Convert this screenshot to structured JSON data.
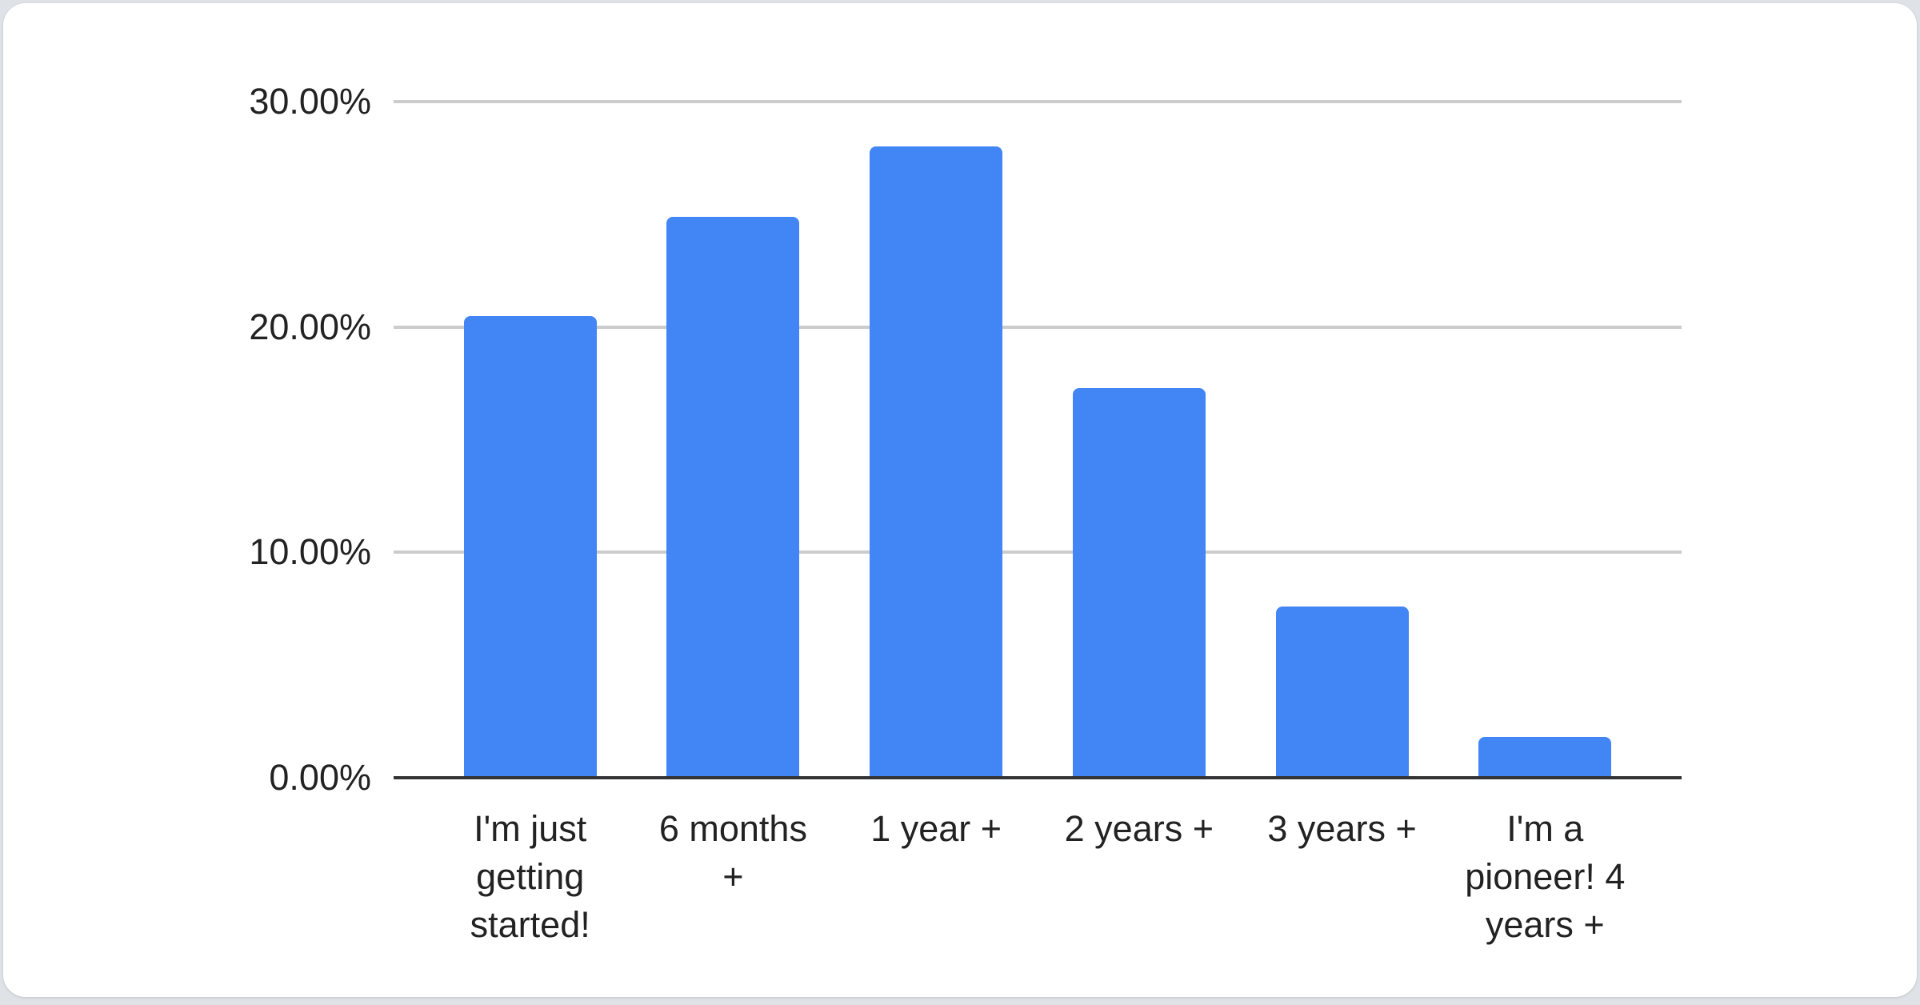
{
  "chart_data": {
    "type": "bar",
    "categories": [
      "I'm just getting started!",
      "6 months +",
      "1 year +",
      "2 years +",
      "3 years +",
      "I'm a pioneer! 4 years +"
    ],
    "values": [
      20.5,
      24.9,
      28.0,
      17.3,
      7.6,
      1.8
    ],
    "values_unit": "percent",
    "title": "",
    "xlabel": "",
    "ylabel": "",
    "ylim": [
      0,
      30
    ],
    "yticks": [
      0,
      10,
      20,
      30
    ],
    "ytick_labels": [
      "0.00%",
      "10.00%",
      "20.00%",
      "30.00%"
    ],
    "grid": true,
    "legend": "none",
    "bar_color": "#4285f4",
    "gridline_color": "#cccccc",
    "axis_line_color": "#333333",
    "text_color": "#222222",
    "card_background": "#ffffff",
    "page_background": "#dfe3e8"
  }
}
